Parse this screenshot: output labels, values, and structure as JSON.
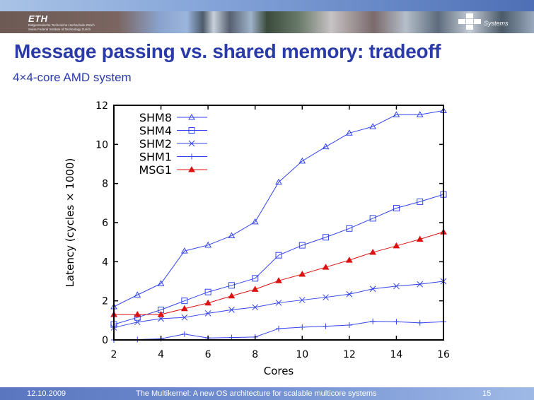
{
  "header": {
    "logo": "ETH",
    "institution_de": "Eidgenössische Technische Hochschule Zürich",
    "institution_en": "Swiss Federal Institute of Technology Zurich",
    "group_logo": "Systems"
  },
  "slide": {
    "title": "Message passing vs. shared memory: tradeoff",
    "subtitle": "4×4-core AMD system"
  },
  "footer": {
    "date": "12.10.2009",
    "talk_title": "The Multikernel: A new OS architecture for scalable multicore systems",
    "page": "15"
  },
  "colors": {
    "title": "#2a3aa8",
    "shm_series": "#3344ee",
    "msg_series": "#dd1111"
  },
  "chart_data": {
    "type": "line",
    "title": "",
    "xlabel": "Cores",
    "ylabel": "Latency (cycles × 1000)",
    "xlim": [
      2,
      16
    ],
    "ylim": [
      0,
      12
    ],
    "x_ticks": [
      2,
      4,
      6,
      8,
      10,
      12,
      14,
      16
    ],
    "y_ticks": [
      0,
      2,
      4,
      6,
      8,
      10,
      12
    ],
    "grid": false,
    "legend_position": "upper left",
    "x": [
      2,
      3,
      4,
      5,
      6,
      7,
      8,
      9,
      10,
      11,
      12,
      13,
      14,
      15,
      16
    ],
    "series": [
      {
        "name": "SHM8",
        "marker": "triangle-open",
        "color": "#3344ee",
        "values": [
          1.7,
          2.3,
          2.88,
          4.55,
          4.85,
          5.33,
          6.04,
          8.07,
          9.15,
          9.88,
          10.58,
          10.91,
          11.52,
          11.52,
          11.73
        ]
      },
      {
        "name": "SHM4",
        "marker": "square-open",
        "color": "#3344ee",
        "values": [
          0.79,
          1.15,
          1.54,
          2.0,
          2.45,
          2.79,
          3.15,
          4.33,
          4.84,
          5.25,
          5.7,
          6.22,
          6.74,
          7.07,
          7.44
        ]
      },
      {
        "name": "SHM2",
        "marker": "x",
        "color": "#3344ee",
        "values": [
          0.63,
          0.91,
          1.09,
          1.15,
          1.36,
          1.54,
          1.67,
          1.9,
          2.04,
          2.18,
          2.34,
          2.61,
          2.75,
          2.85,
          3.0
        ]
      },
      {
        "name": "SHM1",
        "marker": "plus",
        "color": "#3344ee",
        "values": [
          0.0,
          0.02,
          0.06,
          0.3,
          0.1,
          0.12,
          0.15,
          0.58,
          0.65,
          0.7,
          0.76,
          0.95,
          0.93,
          0.87,
          0.93
        ]
      },
      {
        "name": "MSG1",
        "marker": "triangle-filled",
        "color": "#dd1111",
        "values": [
          1.3,
          1.3,
          1.3,
          1.6,
          1.89,
          2.25,
          2.59,
          3.03,
          3.36,
          3.72,
          4.08,
          4.48,
          4.81,
          5.15,
          5.52
        ]
      }
    ]
  }
}
